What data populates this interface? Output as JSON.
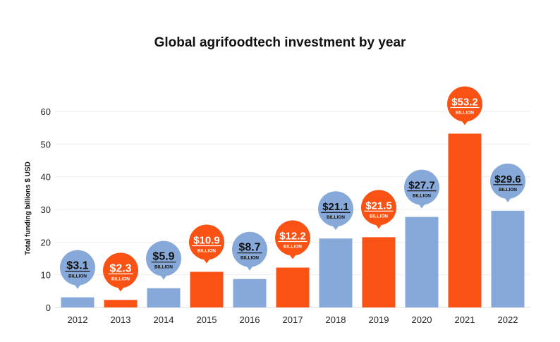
{
  "chart_data": {
    "type": "bar",
    "title": "Global agrifoodtech investment by year",
    "xlabel": "",
    "ylabel": "Total funding billions $ USD",
    "ylim": [
      0,
      60
    ],
    "yticks": [
      0,
      10,
      20,
      30,
      40,
      50,
      60
    ],
    "grid": true,
    "categories": [
      "2012",
      "2013",
      "2014",
      "2015",
      "2016",
      "2017",
      "2018",
      "2019",
      "2020",
      "2021",
      "2022"
    ],
    "values": [
      3.1,
      2.3,
      5.9,
      10.9,
      8.7,
      12.2,
      21.1,
      21.5,
      27.7,
      53.2,
      29.6
    ],
    "data_labels": [
      "$3.1",
      "$2.3",
      "$5.9",
      "$10.9",
      "$8.7",
      "$12.2",
      "$21.1",
      "$21.5",
      "$27.7",
      "$53.2",
      "$29.6"
    ],
    "data_label_unit": "BILLION",
    "bar_colors": [
      "blue",
      "orange",
      "blue",
      "orange",
      "blue",
      "orange",
      "blue",
      "orange",
      "blue",
      "orange",
      "blue"
    ],
    "colors": {
      "blue": "#86a9d9",
      "orange": "#fa5214",
      "blue_text": "#111111",
      "orange_text": "#ffffff"
    }
  }
}
